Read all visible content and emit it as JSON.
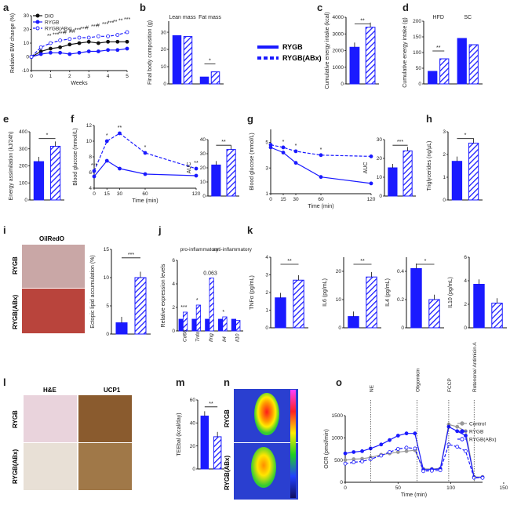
{
  "colors": {
    "blue": "#1a1aff",
    "black": "#111111",
    "gray": "#999999",
    "tissue_red": "#b9443c",
    "tissue_pink": "#e9d3dc",
    "ucp1_brown": "#9a6b3a",
    "hatch_bg": "#ffffff"
  },
  "legend": {
    "rygb": "RYGB",
    "rygb_abx": "RYGB(ABx)"
  },
  "panel_labels": {
    "a": "a",
    "b": "b",
    "c": "c",
    "d": "d",
    "e": "e",
    "f": "f",
    "g": "g",
    "h": "h",
    "i": "i",
    "j": "j",
    "k": "k",
    "l": "l",
    "m": "m",
    "n": "n",
    "o": "o"
  },
  "chart_data": [
    {
      "id": "a",
      "type": "line",
      "xlabel": "Weeks",
      "ylabel": "Relative BW change (%)",
      "x": [
        0,
        0.5,
        1,
        1.5,
        2,
        2.5,
        3,
        3.5,
        4,
        4.5,
        5
      ],
      "xticks": [
        0,
        1,
        2,
        3,
        4,
        5
      ],
      "ylim": [
        -10,
        30
      ],
      "yticks": [
        -10,
        0,
        10,
        20,
        30
      ],
      "series": [
        {
          "name": "DIO",
          "style": "solid-black",
          "values": [
            0,
            4,
            6,
            7,
            9,
            10,
            11,
            10,
            11,
            11,
            11
          ]
        },
        {
          "name": "RYGB",
          "style": "solid-blue",
          "values": [
            0,
            2,
            3,
            3,
            2,
            3,
            4,
            4,
            5,
            5,
            6
          ]
        },
        {
          "name": "RYGB(ABx)",
          "style": "dashed-blue",
          "values": [
            0,
            7,
            10,
            12,
            13,
            14,
            14,
            15,
            15,
            16,
            18
          ]
        }
      ],
      "annotations": [
        "**",
        "***",
        "***",
        "#",
        "##",
        "***",
        "***",
        "#",
        "***",
        "#",
        "***",
        "***",
        "**",
        "**",
        "***"
      ]
    },
    {
      "id": "b",
      "type": "bar",
      "ylabel": "Final body composition (g)",
      "groups": [
        "Lean mass",
        "Fat mass"
      ],
      "series": [
        {
          "name": "RYGB",
          "values": [
            28,
            4
          ]
        },
        {
          "name": "RYGB(ABx)",
          "values": [
            27.5,
            7
          ]
        }
      ],
      "sig": [
        "",
        "*"
      ]
    },
    {
      "id": "c",
      "type": "bar",
      "ylabel": "Cumulative energy intake (kcal)",
      "series": [
        {
          "name": "RYGB",
          "values": [
            2200
          ]
        },
        {
          "name": "RYGB(ABx)",
          "values": [
            3400
          ]
        }
      ],
      "ylim": [
        0,
        4000
      ],
      "sig": [
        "**"
      ]
    },
    {
      "id": "d",
      "type": "bar",
      "ylabel": "Cumulative energy intake (g)",
      "groups": [
        "HFD",
        "SC"
      ],
      "series": [
        {
          "name": "RYGB",
          "values": [
            40,
            145
          ]
        },
        {
          "name": "RYGB(ABx)",
          "values": [
            80,
            125
          ]
        }
      ],
      "ylim": [
        0,
        200
      ],
      "sig": [
        "**",
        ""
      ]
    },
    {
      "id": "e",
      "type": "bar",
      "ylabel": "Energy assimilation (kJ/24h)",
      "series": [
        {
          "name": "RYGB",
          "values": [
            225
          ]
        },
        {
          "name": "RYGB(ABx)",
          "values": [
            315
          ]
        }
      ],
      "ylim": [
        0,
        400
      ],
      "sig": [
        "*"
      ]
    },
    {
      "id": "f",
      "type": "line",
      "xlabel": "Time (min)",
      "ylabel": "Blood glucose (mmol/L)",
      "x": [
        0,
        15,
        30,
        60,
        120
      ],
      "xticks": [
        0,
        15,
        30,
        60,
        120
      ],
      "ylim": [
        4,
        12
      ],
      "series": [
        {
          "name": "RYGB",
          "values": [
            5.5,
            7.5,
            6.5,
            5.8,
            5.6
          ]
        },
        {
          "name": "RYGB(ABx)",
          "values": [
            6.2,
            10,
            11,
            8.5,
            6.5
          ]
        }
      ],
      "sig": [
        "***",
        "*",
        "**",
        "*",
        "**"
      ]
    },
    {
      "id": "f2",
      "type": "bar",
      "ylabel": "AUC",
      "series": [
        {
          "name": "RYGB",
          "values": [
            22
          ]
        },
        {
          "name": "RYGB(ABx)",
          "values": [
            33
          ]
        }
      ],
      "ylim": [
        0,
        40
      ],
      "sig": [
        "**"
      ]
    },
    {
      "id": "g",
      "type": "line",
      "xlabel": "Time (min)",
      "ylabel": "Blood glucose (mmol/L)",
      "x": [
        0,
        15,
        30,
        60,
        120
      ],
      "xticks": [
        0,
        15,
        30,
        60,
        120
      ],
      "ylim": [
        1,
        6
      ],
      "series": [
        {
          "name": "RYGB",
          "values": [
            4.6,
            4.2,
            3.4,
            2.3,
            1.8
          ]
        },
        {
          "name": "RYGB(ABx)",
          "values": [
            4.8,
            4.6,
            4.3,
            4.0,
            3.9
          ]
        }
      ],
      "sig": [
        "*",
        "*",
        "*"
      ]
    },
    {
      "id": "g2",
      "type": "bar",
      "ylabel": "AUC",
      "series": [
        {
          "name": "RYGB",
          "values": [
            15
          ]
        },
        {
          "name": "RYGB(ABx)",
          "values": [
            24
          ]
        }
      ],
      "ylim": [
        0,
        30
      ],
      "sig": [
        "***"
      ]
    },
    {
      "id": "h",
      "type": "bar",
      "ylabel": "Triglycerides (ng/µL)",
      "series": [
        {
          "name": "RYGB",
          "values": [
            1.7
          ]
        },
        {
          "name": "RYGB(ABx)",
          "values": [
            2.5
          ]
        }
      ],
      "ylim": [
        0,
        3
      ],
      "sig": [
        "*"
      ]
    },
    {
      "id": "i2",
      "type": "bar",
      "ylabel": "Ectopic lipid accumulation (%)",
      "series": [
        {
          "name": "RYGB",
          "values": [
            2
          ]
        },
        {
          "name": "RYGB(ABx)",
          "values": [
            10
          ]
        }
      ],
      "ylim": [
        0,
        15
      ],
      "sig": [
        "***"
      ]
    },
    {
      "id": "j",
      "type": "bar",
      "ylabel": "Relative expression levels",
      "categories": [
        "Cd68",
        "Tnfα",
        "Ifng",
        "Il4",
        "Il10"
      ],
      "headers": [
        "pro-inflammatory",
        "anti-inflammatory"
      ],
      "series": [
        {
          "name": "RYGB",
          "values": [
            1,
            1,
            1,
            1,
            1
          ]
        },
        {
          "name": "RYGB(ABx)",
          "values": [
            1.6,
            2.2,
            4.5,
            1.2,
            0.9
          ]
        }
      ],
      "ylim": [
        0,
        6
      ],
      "sig": [
        "***",
        "*",
        "0.063",
        "*",
        ""
      ]
    },
    {
      "id": "k1",
      "type": "bar",
      "ylabel": "TNFα (pg/mL)",
      "series": [
        {
          "name": "RYGB",
          "values": [
            1.7
          ]
        },
        {
          "name": "RYGB(ABx)",
          "values": [
            2.7
          ]
        }
      ],
      "ylim": [
        0,
        4
      ],
      "sig": [
        "**"
      ]
    },
    {
      "id": "k2",
      "type": "bar",
      "ylabel": "IL6 (pg/mL)",
      "series": [
        {
          "name": "RYGB",
          "values": [
            4
          ]
        },
        {
          "name": "RYGB(ABx)",
          "values": [
            18
          ]
        }
      ],
      "ylim": [
        0,
        25
      ],
      "sig": [
        "**"
      ]
    },
    {
      "id": "k3",
      "type": "bar",
      "ylabel": "IL4 (pg/mL)",
      "series": [
        {
          "name": "RYGB",
          "values": [
            0.42
          ]
        },
        {
          "name": "RYGB(ABx)",
          "values": [
            0.2
          ]
        }
      ],
      "ylim": [
        0,
        0.5
      ],
      "sig": [
        "*"
      ]
    },
    {
      "id": "k4",
      "type": "bar",
      "ylabel": "IL10 (pg/mL)",
      "series": [
        {
          "name": "RYGB",
          "values": [
            3.7
          ]
        },
        {
          "name": "RYGB(ABx)",
          "values": [
            2.1
          ]
        }
      ],
      "ylim": [
        0,
        6
      ],
      "sig": [
        ""
      ]
    },
    {
      "id": "m",
      "type": "bar",
      "ylabel": "TEEbal (kcal/day)",
      "series": [
        {
          "name": "RYGB",
          "values": [
            46
          ]
        },
        {
          "name": "RYGB(ABx)",
          "values": [
            28
          ]
        }
      ],
      "ylim": [
        0,
        60
      ],
      "sig": [
        "**"
      ]
    },
    {
      "id": "o",
      "type": "line",
      "xlabel": "Time (min)",
      "ylabel": "OCR (pmol/min)",
      "x": [
        0,
        8,
        16,
        24,
        34,
        42,
        50,
        58,
        66,
        74,
        82,
        90,
        98,
        106,
        114,
        122,
        130
      ],
      "xticks": [
        0,
        50,
        100,
        150
      ],
      "ylim": [
        0,
        1500
      ],
      "yticks": [
        0,
        500,
        1000,
        1500
      ],
      "series": [
        {
          "name": "Control",
          "values": [
            500,
            520,
            530,
            560,
            620,
            650,
            680,
            700,
            720,
            300,
            300,
            310,
            1300,
            1250,
            1150,
            120,
            120
          ]
        },
        {
          "name": "RYGB",
          "values": [
            650,
            680,
            700,
            760,
            850,
            950,
            1050,
            1100,
            1100,
            280,
            290,
            300,
            1250,
            1150,
            1050,
            110,
            110
          ]
        },
        {
          "name": "RYGB(ABx)",
          "values": [
            420,
            450,
            470,
            520,
            600,
            680,
            750,
            780,
            760,
            250,
            260,
            270,
            850,
            800,
            700,
            100,
            100
          ]
        }
      ],
      "markers": [
        "NE",
        "Oligomicin",
        "FCCP",
        "Rotenone/ Antimicin A"
      ]
    }
  ],
  "images": {
    "i_title": "OilRedO",
    "l_he": "H&E",
    "l_ucp1": "UCP1",
    "row_rygb": "RYGB",
    "row_abx": "RYGB(ABx)"
  },
  "o_legend": [
    "Control",
    "RYGB",
    "RYGB(ABx)"
  ]
}
